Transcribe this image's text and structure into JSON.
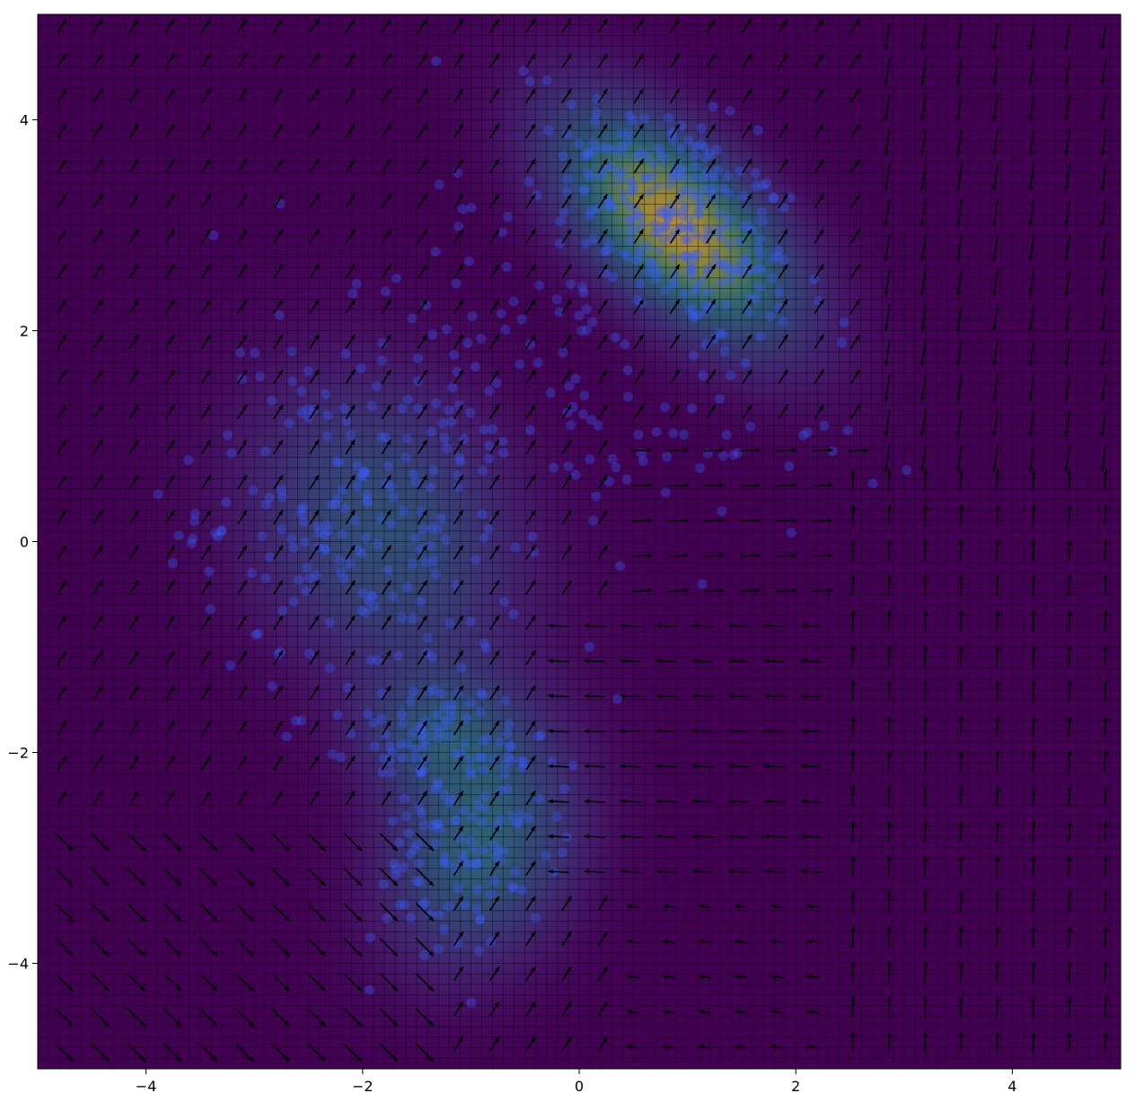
{
  "chart_data": {
    "type": "scatter",
    "subtype": "density heatmap with overlaid scatter points and quiver vector field",
    "title": "",
    "xlabel": "",
    "ylabel": "",
    "xlim": [
      -5,
      5
    ],
    "ylim": [
      -5,
      5
    ],
    "x_ticks": [
      -4,
      -2,
      0,
      2,
      4
    ],
    "y_ticks": [
      -4,
      -2,
      0,
      2,
      4
    ],
    "x_tick_labels": [
      "−4",
      "−2",
      "0",
      "2",
      "4"
    ],
    "y_tick_labels": [
      "−4",
      "−2",
      "0",
      "2",
      "4"
    ],
    "grid": true,
    "legend": "none",
    "colormap": "viridis",
    "colors": {
      "background": "#440154",
      "points": "#3a5bff",
      "arrows": "#000000",
      "grid": "#000000"
    },
    "density_components": [
      {
        "mean": [
          0.9,
          3.0
        ],
        "sd": [
          0.75,
          0.75
        ],
        "corr": -0.6,
        "weight": 1.0
      },
      {
        "mean": [
          -1.8,
          0.1
        ],
        "sd": [
          0.85,
          1.0
        ],
        "corr": -0.2,
        "weight": 0.45
      },
      {
        "mean": [
          -0.9,
          -2.9
        ],
        "sd": [
          0.6,
          0.75
        ],
        "corr": 0.2,
        "weight": 0.55
      },
      {
        "mean": [
          -1.3,
          -1.8
        ],
        "sd": [
          0.5,
          0.4
        ],
        "corr": 0.0,
        "weight": 0.35
      }
    ],
    "scatter_clusters": [
      {
        "center": [
          0.9,
          3.1
        ],
        "spread": [
          0.55,
          0.6
        ],
        "corr": -0.5,
        "count": 260
      },
      {
        "center": [
          -2.0,
          0.2
        ],
        "spread": [
          0.75,
          0.85
        ],
        "corr": -0.1,
        "count": 200
      },
      {
        "center": [
          -1.0,
          -2.8
        ],
        "spread": [
          0.45,
          0.6
        ],
        "corr": 0.3,
        "count": 130
      },
      {
        "center": [
          -1.4,
          -1.8
        ],
        "spread": [
          0.35,
          0.25
        ],
        "corr": 0.0,
        "count": 60
      },
      {
        "center": [
          -0.5,
          2.0
        ],
        "spread": [
          1.2,
          0.8
        ],
        "corr": 0.0,
        "count": 90
      },
      {
        "center": [
          1.0,
          1.0
        ],
        "spread": [
          0.9,
          0.5
        ],
        "corr": 0.0,
        "count": 50
      }
    ],
    "vector_field": {
      "x_range": [
        -5,
        5
      ],
      "y_range": [
        -5,
        5
      ],
      "spacing": 0.333,
      "rules": [
        {
          "region": "x > 1.5 and y > 0.8 and x > 2.8",
          "direction": "down"
        },
        {
          "region": "x > 2.5 and y < 0.8",
          "direction": "up"
        },
        {
          "region": "0.5 < x < 2.5 and -0.5 < y < 1",
          "direction": "right"
        },
        {
          "region": "-0.2 < x < 2.5 and -3 < y < -0.8",
          "direction": "left"
        },
        {
          "region": "x < 0.5 and y > -2.5",
          "direction": "up-right"
        },
        {
          "region": "x < -1 and y < -2.5",
          "direction": "down-right"
        }
      ]
    }
  }
}
